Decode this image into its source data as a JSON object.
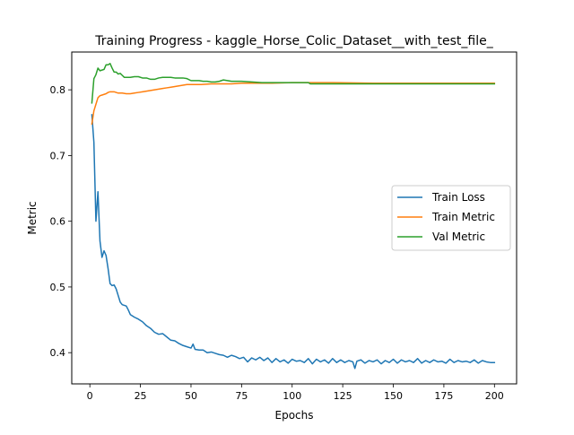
{
  "chart_data": {
    "type": "line",
    "title": "Training Progress - kaggle_Horse_Colic_Dataset__with_test_file_",
    "xlabel": "Epochs",
    "ylabel": "Metric",
    "xlim": [
      -8.95,
      210.95
    ],
    "ylim": [
      0.3525,
      0.8575
    ],
    "xticks": [
      0,
      25,
      50,
      75,
      100,
      125,
      150,
      175,
      200
    ],
    "yticks": [
      0.4,
      0.5,
      0.6,
      0.7,
      0.8
    ],
    "ytick_labels": [
      "0.4",
      "0.5",
      "0.6",
      "0.7",
      "0.8"
    ],
    "grid": false,
    "legend_position": "center-right",
    "series": [
      {
        "name": "Train Loss",
        "color": "#1f77b4",
        "points": [
          [
            1,
            0.762
          ],
          [
            2,
            0.72
          ],
          [
            3,
            0.6
          ],
          [
            4,
            0.645
          ],
          [
            5,
            0.57
          ],
          [
            6,
            0.545
          ],
          [
            7,
            0.555
          ],
          [
            8,
            0.548
          ],
          [
            9,
            0.528
          ],
          [
            10,
            0.505
          ],
          [
            11,
            0.502
          ],
          [
            12,
            0.503
          ],
          [
            13,
            0.497
          ],
          [
            14,
            0.487
          ],
          [
            15,
            0.477
          ],
          [
            16,
            0.473
          ],
          [
            17,
            0.472
          ],
          [
            18,
            0.471
          ],
          [
            19,
            0.465
          ],
          [
            20,
            0.458
          ],
          [
            22,
            0.454
          ],
          [
            24,
            0.451
          ],
          [
            26,
            0.447
          ],
          [
            28,
            0.441
          ],
          [
            30,
            0.437
          ],
          [
            32,
            0.431
          ],
          [
            34,
            0.428
          ],
          [
            36,
            0.429
          ],
          [
            38,
            0.424
          ],
          [
            40,
            0.419
          ],
          [
            42,
            0.418
          ],
          [
            44,
            0.414
          ],
          [
            46,
            0.411
          ],
          [
            48,
            0.409
          ],
          [
            50,
            0.407
          ],
          [
            51,
            0.413
          ],
          [
            52,
            0.405
          ],
          [
            54,
            0.404
          ],
          [
            56,
            0.404
          ],
          [
            58,
            0.4
          ],
          [
            60,
            0.401
          ],
          [
            62,
            0.399
          ],
          [
            64,
            0.397
          ],
          [
            66,
            0.396
          ],
          [
            68,
            0.393
          ],
          [
            70,
            0.396
          ],
          [
            72,
            0.394
          ],
          [
            74,
            0.391
          ],
          [
            76,
            0.393
          ],
          [
            78,
            0.386
          ],
          [
            80,
            0.392
          ],
          [
            82,
            0.389
          ],
          [
            84,
            0.393
          ],
          [
            86,
            0.388
          ],
          [
            88,
            0.392
          ],
          [
            90,
            0.385
          ],
          [
            92,
            0.391
          ],
          [
            94,
            0.386
          ],
          [
            96,
            0.389
          ],
          [
            98,
            0.384
          ],
          [
            100,
            0.39
          ],
          [
            102,
            0.387
          ],
          [
            104,
            0.388
          ],
          [
            106,
            0.385
          ],
          [
            108,
            0.391
          ],
          [
            110,
            0.383
          ],
          [
            112,
            0.39
          ],
          [
            114,
            0.386
          ],
          [
            116,
            0.389
          ],
          [
            118,
            0.384
          ],
          [
            120,
            0.391
          ],
          [
            122,
            0.385
          ],
          [
            124,
            0.389
          ],
          [
            126,
            0.385
          ],
          [
            128,
            0.388
          ],
          [
            130,
            0.386
          ],
          [
            131,
            0.376
          ],
          [
            132,
            0.387
          ],
          [
            134,
            0.389
          ],
          [
            136,
            0.384
          ],
          [
            138,
            0.388
          ],
          [
            140,
            0.386
          ],
          [
            142,
            0.389
          ],
          [
            144,
            0.383
          ],
          [
            146,
            0.388
          ],
          [
            148,
            0.385
          ],
          [
            150,
            0.39
          ],
          [
            152,
            0.384
          ],
          [
            154,
            0.389
          ],
          [
            156,
            0.386
          ],
          [
            158,
            0.388
          ],
          [
            160,
            0.385
          ],
          [
            162,
            0.391
          ],
          [
            164,
            0.384
          ],
          [
            166,
            0.388
          ],
          [
            168,
            0.385
          ],
          [
            170,
            0.389
          ],
          [
            172,
            0.386
          ],
          [
            174,
            0.387
          ],
          [
            176,
            0.384
          ],
          [
            178,
            0.39
          ],
          [
            180,
            0.385
          ],
          [
            182,
            0.388
          ],
          [
            184,
            0.386
          ],
          [
            186,
            0.387
          ],
          [
            188,
            0.385
          ],
          [
            190,
            0.389
          ],
          [
            192,
            0.384
          ],
          [
            194,
            0.388
          ],
          [
            196,
            0.386
          ],
          [
            198,
            0.385
          ],
          [
            200,
            0.385
          ]
        ]
      },
      {
        "name": "Train Metric",
        "color": "#ff7f0e",
        "points": [
          [
            1,
            0.748
          ],
          [
            2,
            0.768
          ],
          [
            3,
            0.778
          ],
          [
            4,
            0.788
          ],
          [
            5,
            0.791
          ],
          [
            6,
            0.792
          ],
          [
            7,
            0.793
          ],
          [
            8,
            0.794
          ],
          [
            9,
            0.796
          ],
          [
            10,
            0.797
          ],
          [
            12,
            0.797
          ],
          [
            14,
            0.795
          ],
          [
            16,
            0.795
          ],
          [
            18,
            0.794
          ],
          [
            20,
            0.794
          ],
          [
            22,
            0.795
          ],
          [
            24,
            0.796
          ],
          [
            26,
            0.797
          ],
          [
            28,
            0.798
          ],
          [
            30,
            0.799
          ],
          [
            32,
            0.8
          ],
          [
            34,
            0.801
          ],
          [
            36,
            0.802
          ],
          [
            38,
            0.803
          ],
          [
            40,
            0.804
          ],
          [
            42,
            0.805
          ],
          [
            44,
            0.806
          ],
          [
            46,
            0.807
          ],
          [
            48,
            0.808
          ],
          [
            50,
            0.808
          ],
          [
            55,
            0.808
          ],
          [
            60,
            0.809
          ],
          [
            65,
            0.809
          ],
          [
            70,
            0.809
          ],
          [
            75,
            0.81
          ],
          [
            80,
            0.81
          ],
          [
            90,
            0.81
          ],
          [
            100,
            0.811
          ],
          [
            110,
            0.811
          ],
          [
            120,
            0.811
          ],
          [
            140,
            0.81
          ],
          [
            160,
            0.81
          ],
          [
            180,
            0.81
          ],
          [
            200,
            0.81
          ]
        ]
      },
      {
        "name": "Val Metric",
        "color": "#2ca02c",
        "points": [
          [
            1,
            0.78
          ],
          [
            2,
            0.817
          ],
          [
            3,
            0.823
          ],
          [
            4,
            0.833
          ],
          [
            5,
            0.829
          ],
          [
            6,
            0.83
          ],
          [
            7,
            0.831
          ],
          [
            8,
            0.838
          ],
          [
            9,
            0.838
          ],
          [
            10,
            0.84
          ],
          [
            11,
            0.833
          ],
          [
            12,
            0.827
          ],
          [
            13,
            0.827
          ],
          [
            14,
            0.824
          ],
          [
            15,
            0.825
          ],
          [
            16,
            0.822
          ],
          [
            17,
            0.819
          ],
          [
            18,
            0.819
          ],
          [
            20,
            0.819
          ],
          [
            22,
            0.82
          ],
          [
            24,
            0.82
          ],
          [
            26,
            0.818
          ],
          [
            28,
            0.818
          ],
          [
            30,
            0.816
          ],
          [
            32,
            0.816
          ],
          [
            34,
            0.818
          ],
          [
            36,
            0.819
          ],
          [
            38,
            0.819
          ],
          [
            40,
            0.819
          ],
          [
            42,
            0.818
          ],
          [
            44,
            0.818
          ],
          [
            46,
            0.818
          ],
          [
            48,
            0.817
          ],
          [
            50,
            0.814
          ],
          [
            52,
            0.814
          ],
          [
            54,
            0.814
          ],
          [
            56,
            0.813
          ],
          [
            58,
            0.813
          ],
          [
            60,
            0.812
          ],
          [
            62,
            0.812
          ],
          [
            64,
            0.813
          ],
          [
            66,
            0.815
          ],
          [
            68,
            0.814
          ],
          [
            70,
            0.813
          ],
          [
            75,
            0.813
          ],
          [
            80,
            0.812
          ],
          [
            85,
            0.811
          ],
          [
            90,
            0.811
          ],
          [
            95,
            0.811
          ],
          [
            100,
            0.811
          ],
          [
            105,
            0.811
          ],
          [
            108,
            0.811
          ],
          [
            109,
            0.809
          ],
          [
            120,
            0.809
          ],
          [
            140,
            0.809
          ],
          [
            160,
            0.809
          ],
          [
            180,
            0.809
          ],
          [
            200,
            0.809
          ]
        ]
      }
    ]
  }
}
